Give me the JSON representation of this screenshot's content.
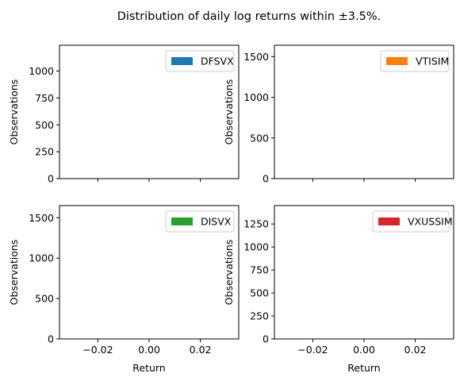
{
  "chart_data": {
    "title": "Distribution of daily log returns within ±3.5%.",
    "type": "bar",
    "xlim": [
      -0.035,
      0.035
    ],
    "x_ticks": [
      -0.02,
      0.0,
      0.02
    ],
    "x_tick_labels": [
      "−0.02",
      "0.00",
      "0.02"
    ],
    "panels": [
      {
        "series": [
          {
            "name": "DFSVX",
            "color": "#1f77b4",
            "values": []
          }
        ],
        "ylabel": "Observations",
        "xlabel": "",
        "ylim": [
          0,
          1240
        ],
        "y_ticks": [
          0,
          250,
          500,
          750,
          1000
        ],
        "y_tick_labels": [
          "0",
          "250",
          "500",
          "750",
          "1000"
        ],
        "show_x_tick_labels": false,
        "legend": "top-right",
        "grid": false
      },
      {
        "series": [
          {
            "name": "VTISIM",
            "color": "#ff7f0e",
            "values": []
          }
        ],
        "ylabel": "Observations",
        "xlabel": "",
        "ylim": [
          0,
          1640
        ],
        "y_ticks": [
          0,
          500,
          1000,
          1500
        ],
        "y_tick_labels": [
          "0",
          "500",
          "1000",
          "1500"
        ],
        "show_x_tick_labels": false,
        "legend": "top-right",
        "grid": false
      },
      {
        "series": [
          {
            "name": "DISVX",
            "color": "#2ca02c",
            "values": []
          }
        ],
        "ylabel": "Observations",
        "xlabel": "Return",
        "ylim": [
          0,
          1650
        ],
        "y_ticks": [
          0,
          500,
          1000,
          1500
        ],
        "y_tick_labels": [
          "0",
          "500",
          "1000",
          "1500"
        ],
        "show_x_tick_labels": true,
        "legend": "top-right",
        "grid": false
      },
      {
        "series": [
          {
            "name": "VXUSSIM",
            "color": "#d62728",
            "values": []
          }
        ],
        "ylabel": "Observations",
        "xlabel": "Return",
        "ylim": [
          0,
          1450
        ],
        "y_ticks": [
          0,
          250,
          500,
          750,
          1000,
          1250
        ],
        "y_tick_labels": [
          "0",
          "250",
          "500",
          "750",
          "1000",
          "1250"
        ],
        "show_x_tick_labels": true,
        "legend": "top-right",
        "grid": false
      }
    ]
  }
}
